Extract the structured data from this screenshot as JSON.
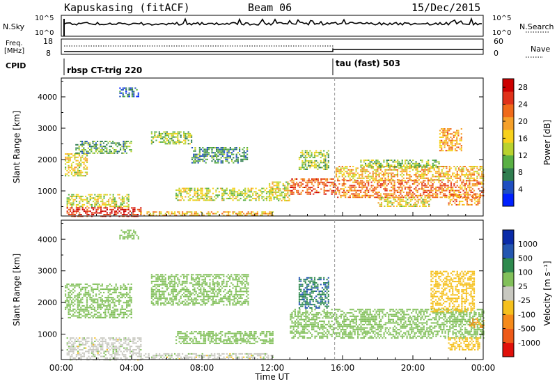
{
  "header": {
    "station": "Kapuskasing (fitACF)",
    "beam": "Beam 06",
    "date": "15/Dec/2015"
  },
  "strips": {
    "nsky": {
      "label": "N.Sky",
      "left_ticks": [
        "10^5",
        "10^0"
      ],
      "right_ticks": [
        "10^5",
        "10^0"
      ],
      "right_label": "N.Search"
    },
    "freq": {
      "label_line1": "Freq.",
      "label_line2": "[MHz]",
      "left_ticks": [
        "18",
        "8"
      ],
      "right_ticks": [
        "60",
        "0"
      ],
      "right_label": "Nave"
    },
    "cpid": {
      "label": "CPID",
      "segments": [
        {
          "name": "rbsp CT-trig 220",
          "start_hour": 0,
          "end_hour": 15.55
        },
        {
          "name": "tau (fast) 503",
          "start_hour": 15.55,
          "end_hour": 24
        }
      ]
    }
  },
  "chart_data": [
    {
      "type": "heatmap",
      "name": "Power",
      "xlabel": "",
      "ylabel": "Slant Range [km]",
      "xlim": [
        0,
        24
      ],
      "ylim": [
        200,
        4600
      ],
      "yticks": [
        "1000",
        "2000",
        "3000",
        "4000"
      ],
      "xticks": [
        "00:00",
        "04:00",
        "08:00",
        "12:00",
        "16:00",
        "20:00",
        "00:00"
      ],
      "colorbar": {
        "label": "Power [dB]",
        "ticks": [
          "4",
          "8",
          "12",
          "16",
          "20",
          "24",
          "28"
        ],
        "range": [
          0,
          30
        ],
        "colors": [
          "#0020ff",
          "#1f4fc0",
          "#2f7d4f",
          "#59b044",
          "#b9d22e",
          "#f7d11b",
          "#f5a02a",
          "#f06a1a",
          "#e0321a",
          "#cc0000"
        ]
      },
      "echo_regions": [
        {
          "x0": 0.2,
          "x1": 1.5,
          "y0": 1500,
          "y1": 2200,
          "value": 16
        },
        {
          "x0": 0.8,
          "x1": 4.0,
          "y0": 2200,
          "y1": 2600,
          "value": 10
        },
        {
          "x0": 3.3,
          "x1": 4.4,
          "y0": 4000,
          "y1": 4300,
          "value": 6
        },
        {
          "x0": 0.3,
          "x1": 3.8,
          "y0": 500,
          "y1": 900,
          "value": 14
        },
        {
          "x0": 0.3,
          "x1": 4.5,
          "y0": 200,
          "y1": 480,
          "value": 26
        },
        {
          "x0": 4.5,
          "x1": 12.0,
          "y0": 200,
          "y1": 350,
          "value": 18
        },
        {
          "x0": 5.1,
          "x1": 7.4,
          "y0": 2500,
          "y1": 2900,
          "value": 12
        },
        {
          "x0": 7.4,
          "x1": 10.6,
          "y0": 1900,
          "y1": 2400,
          "value": 8
        },
        {
          "x0": 6.5,
          "x1": 12.0,
          "y0": 700,
          "y1": 1100,
          "value": 14
        },
        {
          "x0": 11.8,
          "x1": 13.0,
          "y0": 700,
          "y1": 1300,
          "value": 15
        },
        {
          "x0": 13.0,
          "x1": 15.6,
          "y0": 900,
          "y1": 1400,
          "value": 24
        },
        {
          "x0": 13.5,
          "x1": 15.2,
          "y0": 1700,
          "y1": 2300,
          "value": 12
        },
        {
          "x0": 15.6,
          "x1": 24.0,
          "y0": 800,
          "y1": 1350,
          "value": 22
        },
        {
          "x0": 15.6,
          "x1": 24.0,
          "y0": 1350,
          "y1": 1800,
          "value": 18
        },
        {
          "x0": 17.0,
          "x1": 21.5,
          "y0": 1750,
          "y1": 2000,
          "value": 12
        },
        {
          "x0": 18.0,
          "x1": 21.0,
          "y0": 500,
          "y1": 800,
          "value": 16
        },
        {
          "x0": 22.0,
          "x1": 23.8,
          "y0": 550,
          "y1": 900,
          "value": 20
        },
        {
          "x0": 21.5,
          "x1": 22.8,
          "y0": 2300,
          "y1": 3000,
          "value": 20
        }
      ]
    },
    {
      "type": "heatmap",
      "name": "Velocity",
      "xlabel": "Time UT",
      "ylabel": "Slant Range [km]",
      "xlim": [
        0,
        24
      ],
      "ylim": [
        200,
        4600
      ],
      "yticks": [
        "1000",
        "2000",
        "3000",
        "4000"
      ],
      "xticks": [
        "00:00",
        "04:00",
        "08:00",
        "12:00",
        "16:00",
        "20:00",
        "00:00"
      ],
      "colorbar": {
        "label": "Velocity [m s⁻¹]",
        "ticks": [
          "1000",
          "500",
          "100",
          "25",
          "-25",
          "-100",
          "-500",
          "-1000"
        ],
        "colors": [
          "#0a2ba8",
          "#2456b0",
          "#2e8a4e",
          "#82c05a",
          "#c8c8c0",
          "#f5c01d",
          "#f58a1a",
          "#ee5a18",
          "#e0100a"
        ]
      },
      "echo_regions": [
        {
          "x0": 0.2,
          "x1": 4.0,
          "y0": 1500,
          "y1": 2600,
          "value": 0
        },
        {
          "x0": 3.3,
          "x1": 4.4,
          "y0": 4000,
          "y1": 4300,
          "value": 0
        },
        {
          "x0": 0.3,
          "x1": 4.5,
          "y0": 200,
          "y1": 900,
          "value": -60
        },
        {
          "x0": 4.5,
          "x1": 12.0,
          "y0": 200,
          "y1": 400,
          "value": -60
        },
        {
          "x0": 5.1,
          "x1": 10.6,
          "y0": 1900,
          "y1": 2900,
          "value": 0
        },
        {
          "x0": 6.5,
          "x1": 12.0,
          "y0": 700,
          "y1": 1100,
          "value": 0
        },
        {
          "x0": 13.0,
          "x1": 24.0,
          "y0": 900,
          "y1": 1800,
          "value": 0
        },
        {
          "x0": 13.5,
          "x1": 15.2,
          "y0": 1800,
          "y1": 2800,
          "value": 80
        },
        {
          "x0": 21.0,
          "x1": 23.5,
          "y0": 1700,
          "y1": 3000,
          "value": -300
        },
        {
          "x0": 22.0,
          "x1": 23.8,
          "y0": 500,
          "y1": 900,
          "value": -300
        },
        {
          "x0": 23.2,
          "x1": 24.0,
          "y0": 1200,
          "y1": 1500,
          "value": -700
        }
      ]
    }
  ]
}
